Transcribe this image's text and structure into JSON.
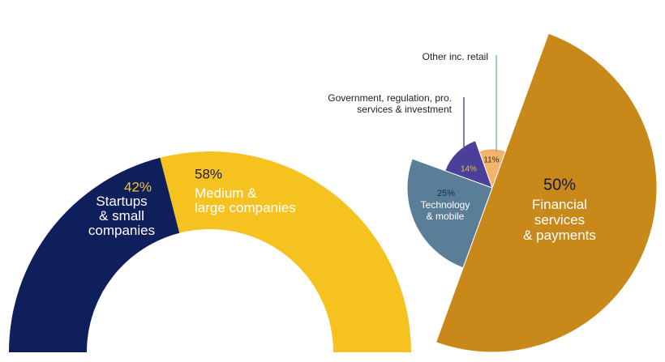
{
  "chart_data": [
    {
      "type": "half-donut",
      "categories": [
        "Startups\n& small\ncompanies",
        "Medium &\nlarge companies"
      ],
      "values": [
        42,
        58
      ],
      "value_labels": [
        "42%",
        "58%"
      ],
      "colors": [
        "#0f1f5c",
        "#f5c220"
      ]
    },
    {
      "type": "pie",
      "categories": [
        "Financial\nservices\n& payments",
        "Technology\n& mobile",
        "Government, regulation, pro.\nservices & investment",
        "Other inc. retail"
      ],
      "values": [
        50,
        25,
        14,
        11
      ],
      "value_labels": [
        "50%",
        "25%",
        "14%",
        "11%"
      ],
      "colors": [
        "#c8891a",
        "#5a7d98",
        "#4a3f99",
        "#f2b36b"
      ]
    }
  ]
}
